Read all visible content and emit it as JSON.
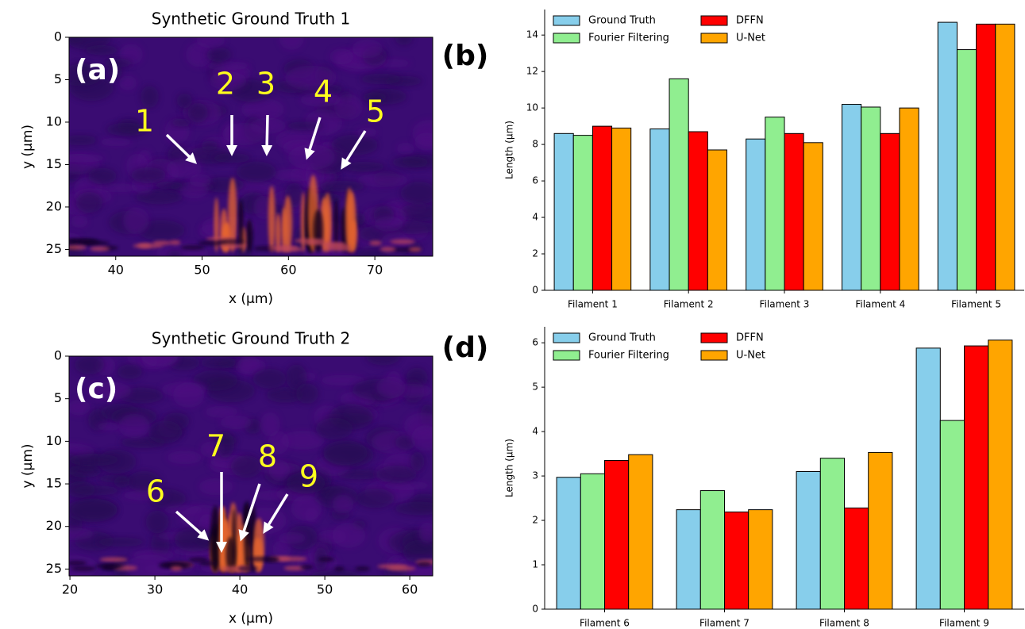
{
  "chart_data": [
    {
      "type": "image",
      "title": "Synthetic Ground Truth 1",
      "panel_label": "(a)",
      "x_label": "x (μm)",
      "y_label": "y (μm)",
      "xlim": [
        34.6,
        76.7
      ],
      "ylim": [
        0,
        25.8
      ],
      "y_inverted": true,
      "xticks": [
        40,
        50,
        60,
        70
      ],
      "yticks": [
        0,
        5,
        10,
        15,
        20,
        25
      ],
      "annotations": [
        "1",
        "2",
        "3",
        "4",
        "5"
      ]
    },
    {
      "type": "bar",
      "panel_label": "(b)",
      "y_label": "Length (μm)",
      "categories": [
        "Filament 1",
        "Filament 2",
        "Filament 3",
        "Filament 4",
        "Filament 5"
      ],
      "series": [
        {
          "name": "Ground Truth",
          "color": "#87ceeb",
          "values": [
            8.6,
            8.85,
            8.3,
            10.2,
            14.7
          ]
        },
        {
          "name": "Fourier Filtering",
          "color": "#90ee90",
          "values": [
            8.5,
            11.6,
            9.5,
            10.05,
            13.2
          ]
        },
        {
          "name": "DFFN",
          "color": "#ff0000",
          "values": [
            9.0,
            8.7,
            8.6,
            8.6,
            14.6
          ]
        },
        {
          "name": "U-Net",
          "color": "#ffa500",
          "values": [
            8.9,
            7.7,
            8.1,
            10.0,
            14.6
          ]
        }
      ],
      "ylim": [
        0,
        15.4
      ],
      "yticks": [
        0,
        2,
        4,
        6,
        8,
        10,
        12,
        14
      ],
      "legend": "upper left"
    },
    {
      "type": "image",
      "title": "Synthetic Ground Truth 2",
      "panel_label": "(c)",
      "x_label": "x (μm)",
      "y_label": "y (μm)",
      "xlim": [
        19.9,
        62.7
      ],
      "ylim": [
        0,
        25.8
      ],
      "y_inverted": true,
      "xticks": [
        20,
        30,
        40,
        50,
        60
      ],
      "yticks": [
        0,
        5,
        10,
        15,
        20,
        25
      ],
      "annotations": [
        "6",
        "7",
        "8",
        "9"
      ]
    },
    {
      "type": "bar",
      "panel_label": "(d)",
      "y_label": "Length (μm)",
      "categories": [
        "Filament 6",
        "Filament 7",
        "Filament 8",
        "Filament 9"
      ],
      "series": [
        {
          "name": "Ground Truth",
          "color": "#87ceeb",
          "values": [
            2.97,
            2.24,
            3.1,
            5.88
          ]
        },
        {
          "name": "Fourier Filtering",
          "color": "#90ee90",
          "values": [
            3.05,
            2.67,
            3.4,
            4.25
          ]
        },
        {
          "name": "DFFN",
          "color": "#ff0000",
          "values": [
            3.35,
            2.19,
            2.28,
            5.93
          ]
        },
        {
          "name": "U-Net",
          "color": "#ffa500",
          "values": [
            3.48,
            2.24,
            3.53,
            6.06
          ]
        }
      ],
      "ylim": [
        0,
        6.36
      ],
      "yticks": [
        0,
        1,
        2,
        3,
        4,
        5,
        6
      ],
      "legend": "upper left"
    }
  ]
}
